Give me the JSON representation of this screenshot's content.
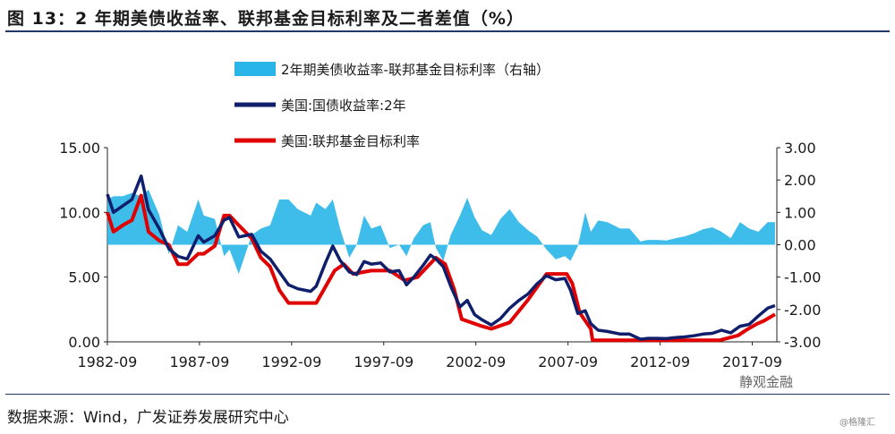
{
  "title": "图 13：2 年期美债收益率、联邦基金目标利率及二者差值（%）",
  "source": "数据来源：Wind，广发证券发展研究中心",
  "brand": "静观金融",
  "brand_sub": "@格隆汇",
  "colors": {
    "spread": "#29b5e8",
    "yield2y": "#0f1f6b",
    "fedfunds": "#e00000"
  },
  "chart_data": {
    "type": "line",
    "y_left": {
      "ticks": [
        "15.00",
        "10.00",
        "5.00",
        "0.00"
      ],
      "ylim": [
        0,
        15
      ]
    },
    "y_right": {
      "ticks": [
        "3.00",
        "2.00",
        "1.00",
        "0.00",
        "-1.00",
        "-2.00",
        "-3.00"
      ],
      "ylim": [
        -3,
        3
      ]
    },
    "x_ticks": [
      "1982-09",
      "1987-09",
      "1992-09",
      "1997-09",
      "2002-09",
      "2007-09",
      "2012-09",
      "2017-09"
    ],
    "xlim": [
      1982.67,
      2019.0
    ],
    "legend": [
      "2年期美债收益率-联邦基金目标利率（右轴）",
      "美国:国债收益率:2年",
      "美国:联邦基金目标利率"
    ],
    "series": [
      {
        "name": "美国:国债收益率:2年",
        "axis": "left",
        "x": [
          1982.67,
          1983.0,
          1983.5,
          1984.0,
          1984.5,
          1984.9,
          1985.5,
          1986.0,
          1986.5,
          1987.0,
          1987.6,
          1987.9,
          1988.5,
          1989.0,
          1989.3,
          1989.8,
          1990.5,
          1991.0,
          1991.5,
          1992.0,
          1992.5,
          1993.0,
          1993.7,
          1994.0,
          1994.5,
          1994.9,
          1995.3,
          1995.8,
          1996.2,
          1996.6,
          1997.0,
          1997.5,
          1998.0,
          1998.5,
          1998.9,
          1999.3,
          1999.8,
          2000.2,
          2000.5,
          2000.9,
          2001.3,
          2001.8,
          2002.2,
          2002.6,
          2003.0,
          2003.5,
          2004.0,
          2004.5,
          2005.0,
          2005.5,
          2006.0,
          2006.5,
          2007.0,
          2007.5,
          2007.8,
          2008.2,
          2008.6,
          2008.9,
          2009.3,
          2009.8,
          2010.5,
          2011.0,
          2011.6,
          2012.0,
          2012.5,
          2013.0,
          2013.5,
          2014.0,
          2014.5,
          2015.0,
          2015.5,
          2016.0,
          2016.5,
          2017.0,
          2017.5,
          2018.0,
          2018.5,
          2018.9
        ],
        "y": [
          11.4,
          10.0,
          10.5,
          11.0,
          12.8,
          10.2,
          8.7,
          7.2,
          6.6,
          6.4,
          8.2,
          7.7,
          8.2,
          9.4,
          9.6,
          8.1,
          8.3,
          7.0,
          6.4,
          5.4,
          4.4,
          4.1,
          3.9,
          4.3,
          6.1,
          7.4,
          6.3,
          5.4,
          5.2,
          6.2,
          6.0,
          6.1,
          5.4,
          5.5,
          4.4,
          5.0,
          5.9,
          6.7,
          6.4,
          5.8,
          4.3,
          2.7,
          3.2,
          2.1,
          1.7,
          1.3,
          1.8,
          2.6,
          3.2,
          3.7,
          4.5,
          5.1,
          4.8,
          4.9,
          4.0,
          2.2,
          2.4,
          1.4,
          0.9,
          0.8,
          0.6,
          0.6,
          0.2,
          0.27,
          0.27,
          0.25,
          0.33,
          0.38,
          0.47,
          0.6,
          0.66,
          0.9,
          0.7,
          1.2,
          1.35,
          2.0,
          2.6,
          2.8
        ]
      },
      {
        "name": "美国:联邦基金目标利率",
        "axis": "left",
        "x": [
          1982.67,
          1983.0,
          1983.5,
          1984.0,
          1984.5,
          1984.9,
          1985.5,
          1986.0,
          1986.5,
          1987.0,
          1987.6,
          1987.9,
          1988.5,
          1989.0,
          1989.3,
          1989.8,
          1990.5,
          1991.0,
          1991.5,
          1992.0,
          1992.5,
          1993.0,
          1994.0,
          1994.3,
          1995.0,
          1995.5,
          1996.0,
          1997.0,
          1998.0,
          1998.8,
          1999.5,
          2000.0,
          2000.5,
          2001.0,
          2001.5,
          2001.9,
          2002.9,
          2003.5,
          2004.5,
          2005.5,
          2006.5,
          2007.6,
          2007.9,
          2008.3,
          2008.9,
          2009.0,
          2015.9,
          2016.9,
          2017.3,
          2017.6,
          2017.9,
          2018.3,
          2018.6,
          2018.9
        ],
        "y": [
          10.0,
          8.5,
          9.0,
          9.4,
          11.3,
          8.5,
          7.8,
          7.5,
          6.0,
          6.0,
          6.8,
          6.8,
          7.4,
          9.75,
          9.75,
          9.0,
          8.0,
          6.5,
          5.8,
          4.0,
          3.0,
          3.0,
          3.0,
          3.75,
          5.5,
          6.0,
          5.25,
          5.5,
          5.5,
          4.75,
          5.0,
          5.75,
          6.5,
          6.0,
          4.0,
          1.75,
          1.25,
          1.0,
          1.5,
          3.25,
          5.25,
          5.25,
          4.5,
          2.25,
          1.0,
          0.125,
          0.125,
          0.5,
          0.875,
          1.125,
          1.375,
          1.625,
          1.875,
          2.125
        ]
      },
      {
        "name": "2年期美债收益率-联邦基金目标利率",
        "axis": "right",
        "x": [
          1982.67,
          1983.0,
          1983.5,
          1984.0,
          1984.5,
          1984.9,
          1985.5,
          1986.0,
          1986.5,
          1987.0,
          1987.6,
          1987.9,
          1988.5,
          1989.0,
          1989.3,
          1989.8,
          1990.5,
          1991.0,
          1991.5,
          1992.0,
          1992.5,
          1993.0,
          1993.7,
          1994.0,
          1994.5,
          1994.9,
          1995.3,
          1995.8,
          1996.2,
          1996.6,
          1997.0,
          1997.5,
          1998.0,
          1998.5,
          1998.9,
          1999.3,
          1999.8,
          2000.2,
          2000.5,
          2000.9,
          2001.3,
          2001.8,
          2002.2,
          2002.6,
          2003.0,
          2003.5,
          2004.0,
          2004.5,
          2005.0,
          2005.5,
          2006.0,
          2006.5,
          2007.0,
          2007.5,
          2007.8,
          2008.2,
          2008.6,
          2008.9,
          2009.3,
          2009.8,
          2010.5,
          2011.0,
          2011.6,
          2012.0,
          2012.5,
          2013.0,
          2013.5,
          2014.0,
          2014.5,
          2015.0,
          2015.5,
          2016.0,
          2016.5,
          2017.0,
          2017.5,
          2018.0,
          2018.5,
          2018.9
        ],
        "y": [
          1.4,
          1.5,
          1.5,
          1.6,
          1.5,
          1.7,
          0.9,
          -0.3,
          0.6,
          0.4,
          1.4,
          0.9,
          0.8,
          -0.35,
          -0.15,
          -0.9,
          0.3,
          0.5,
          0.6,
          1.4,
          1.4,
          1.1,
          0.9,
          1.3,
          1.1,
          1.4,
          0.5,
          -0.4,
          0.0,
          0.9,
          0.5,
          0.6,
          -0.1,
          0.0,
          -0.35,
          0.2,
          0.6,
          0.7,
          -0.1,
          -0.5,
          0.3,
          0.9,
          1.45,
          0.85,
          0.45,
          0.3,
          0.8,
          1.1,
          0.7,
          0.45,
          0.25,
          -0.15,
          -0.45,
          -0.35,
          -0.5,
          -0.05,
          1.0,
          0.4,
          0.75,
          0.7,
          0.5,
          0.5,
          0.1,
          0.15,
          0.15,
          0.13,
          0.2,
          0.26,
          0.35,
          0.48,
          0.54,
          0.4,
          0.2,
          0.7,
          0.5,
          0.4,
          0.7,
          0.7
        ]
      }
    ]
  }
}
